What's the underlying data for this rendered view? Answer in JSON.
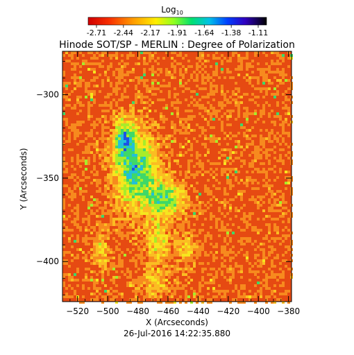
{
  "chart_data": {
    "type": "heatmap",
    "title": "Hinode SOT/SP - MERLIN : Degree of Polarization",
    "xlabel": "X (Arcseconds)",
    "ylabel": "Y (Arcseconds)",
    "xlim": [
      -530,
      -378
    ],
    "ylim": [
      -424,
      -274
    ],
    "x_ticks": [
      -520,
      -500,
      -480,
      -460,
      -440,
      -420,
      -400,
      -380
    ],
    "y_ticks": [
      -300,
      -350,
      -400
    ],
    "colorbar": {
      "label_base": "Log",
      "label_sub": "10",
      "ticks": [
        "-2.71",
        "-2.44",
        "-2.17",
        "-1.91",
        "-1.64",
        "-1.38",
        "-1.11"
      ],
      "range": [
        -2.71,
        -1.11
      ]
    },
    "timestamp": "26-Jul-2016 14:22:35.880",
    "colors": {
      "background_low": "#e64a12",
      "mid": "#f3c51a",
      "high_green": "#36d15a",
      "high_blue": "#1634d2",
      "peak": "#1a0050"
    }
  }
}
